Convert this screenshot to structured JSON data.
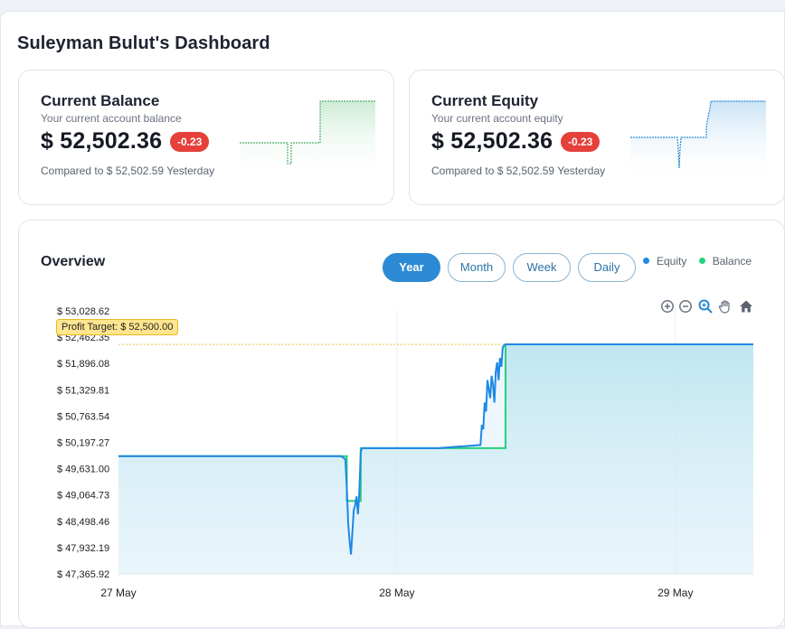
{
  "dashboard": {
    "title": "Suleyman Bulut's Dashboard"
  },
  "balance_card": {
    "title": "Current Balance",
    "subtitle": "Your current account balance",
    "value": "$ 52,502.36",
    "change": "-0.23",
    "compare": "Compared to $ 52,502.59 Yesterday"
  },
  "equity_card": {
    "title": "Current Equity",
    "subtitle": "Your current account equity",
    "value": "$ 52,502.36",
    "change": "-0.23",
    "compare": "Compared to $ 52,502.59 Yesterday"
  },
  "overview": {
    "title": "Overview",
    "tabs": [
      {
        "label": "Year",
        "active": true
      },
      {
        "label": "Month",
        "active": false
      },
      {
        "label": "Week",
        "active": false
      },
      {
        "label": "Daily",
        "active": false
      }
    ],
    "legend": [
      {
        "label": "Equity",
        "color": "#1e88e5"
      },
      {
        "label": "Balance",
        "color": "#26d07c"
      }
    ],
    "toolbar_icons": [
      "zoom-in-icon",
      "zoom-out-icon",
      "zoom-selection-icon",
      "pan-hand-icon",
      "home-reset-icon"
    ],
    "profit_target_label": "Profit Target: $ 52,500.00"
  },
  "colors": {
    "accent": "#2b8ad3",
    "equity_line": "#1e88e5",
    "balance_line": "#26d07c",
    "badge": "#e5403a",
    "target": "#e8c64a"
  },
  "chart_data": {
    "type": "area",
    "x_tick_labels": [
      "27 May",
      "28 May",
      "29 May"
    ],
    "y_tick_labels": [
      "$ 53,028.62",
      "$ 52,462.35",
      "$ 51,896.08",
      "$ 51,329.81",
      "$ 50,763.54",
      "$ 50,197.27",
      "$ 49,631.00",
      "$ 49,064.73",
      "$ 48,498.46",
      "$ 47,932.19",
      "$ 47,365.92"
    ],
    "ylim": [
      47365.92,
      53028.62
    ],
    "xlim": [
      0,
      2.28
    ],
    "profit_target": 52500.0,
    "series": [
      {
        "name": "Equity",
        "x": [
          0,
          0.8,
          0.815,
          0.82,
          0.825,
          0.83,
          0.835,
          0.84,
          0.845,
          0.85,
          0.855,
          0.86,
          0.865,
          0.87,
          0.875,
          1.15,
          1.3,
          1.305,
          1.31,
          1.315,
          1.32,
          1.325,
          1.33,
          1.335,
          1.34,
          1.345,
          1.35,
          1.355,
          1.36,
          1.365,
          1.37,
          1.375,
          1.38,
          1.385,
          1.39,
          2.28
        ],
        "values": [
          50000,
          50000,
          49930,
          49300,
          48500,
          48100,
          47800,
          48300,
          48800,
          48900,
          49100,
          48700,
          49200,
          50100,
          50180,
          50180,
          50250,
          50700,
          50600,
          51200,
          51000,
          51700,
          51500,
          51300,
          51800,
          51600,
          51200,
          51900,
          52100,
          51700,
          52200,
          52000,
          52430,
          52480,
          52502,
          52502
        ]
      },
      {
        "name": "Balance",
        "x": [
          0,
          0.82,
          0.82,
          0.87,
          0.87,
          1.39,
          1.39,
          2.28
        ],
        "values": [
          50000,
          50000,
          49000,
          49000,
          50180,
          50180,
          52502,
          52502
        ]
      }
    ]
  }
}
